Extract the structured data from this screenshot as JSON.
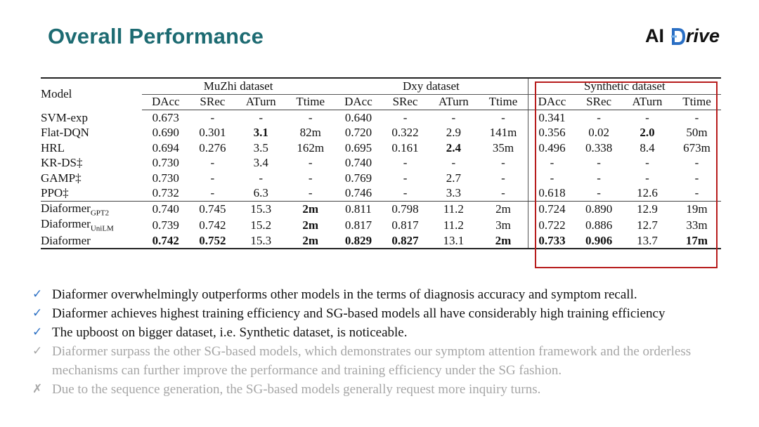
{
  "slide": {
    "title": "Overall Performance"
  },
  "logo": {
    "ai": "AI",
    "rive": "rive"
  },
  "table": {
    "model_header": "Model",
    "groups": [
      "MuZhi dataset",
      "Dxy dataset",
      "Synthetic dataset"
    ],
    "metrics": [
      "DAcc",
      "SRec",
      "ATurn",
      "Ttime"
    ],
    "rows": [
      {
        "model": "SVM-exp",
        "cells": [
          "0.673",
          "-",
          "-",
          "-",
          "0.640",
          "-",
          "-",
          "-",
          "0.341",
          "-",
          "-",
          "-"
        ]
      },
      {
        "model": "Flat-DQN",
        "cells": [
          "0.690",
          "0.301",
          "3.1",
          "82m",
          "0.720",
          "0.322",
          "2.9",
          "141m",
          "0.356",
          "0.02",
          "2.0",
          "50m"
        ]
      },
      {
        "model": "HRL",
        "cells": [
          "0.694",
          "0.276",
          "3.5",
          "162m",
          "0.695",
          "0.161",
          "2.4",
          "35m",
          "0.496",
          "0.338",
          "8.4",
          "673m"
        ]
      },
      {
        "model": "KR-DS‡",
        "cells": [
          "0.730",
          "-",
          "3.4",
          "-",
          "0.740",
          "-",
          "-",
          "-",
          "-",
          "-",
          "-",
          "-"
        ]
      },
      {
        "model": "GAMP‡",
        "cells": [
          "0.730",
          "-",
          "-",
          "-",
          "0.769",
          "-",
          "2.7",
          "-",
          "-",
          "-",
          "-",
          "-"
        ]
      },
      {
        "model": "PPO‡",
        "cells": [
          "0.732",
          "-",
          "6.3",
          "-",
          "0.746",
          "-",
          "3.3",
          "-",
          "0.618",
          "-",
          "12.6",
          "-"
        ]
      },
      {
        "model": "Diaformer",
        "sub": "GPT2",
        "cells": [
          "0.740",
          "0.745",
          "15.3",
          "2m",
          "0.811",
          "0.798",
          "11.2",
          "2m",
          "0.724",
          "0.890",
          "12.9",
          "19m"
        ]
      },
      {
        "model": "Diaformer",
        "sub": "UniLM",
        "cells": [
          "0.739",
          "0.742",
          "15.2",
          "2m",
          "0.817",
          "0.817",
          "11.2",
          "3m",
          "0.722",
          "0.886",
          "12.7",
          "33m"
        ]
      },
      {
        "model": "Diaformer",
        "cells": [
          "0.742",
          "0.752",
          "15.3",
          "2m",
          "0.829",
          "0.827",
          "13.1",
          "2m",
          "0.733",
          "0.906",
          "13.7",
          "17m"
        ]
      }
    ]
  },
  "bullets": [
    {
      "icon": "✓",
      "text": "Diaformer overwhelmingly outperforms other models in the terms of diagnosis accuracy and symptom recall."
    },
    {
      "icon": "✓",
      "text": "Diaformer achieves highest training efficiency and SG-based models all have considerably high training efficiency"
    },
    {
      "icon": "✓",
      "text": "The upboost on bigger dataset, i.e. Synthetic dataset, is noticeable."
    },
    {
      "icon": "✓",
      "text": "Diaformer surpass the other SG-based models, which demonstrates our symptom attention framework and the orderless mechanisms can further improve the performance and training efficiency under the SG fashion."
    },
    {
      "icon": "✗",
      "text": "Due to the sequence generation, the SG-based models generally request more inquiry turns."
    }
  ],
  "colors": {
    "title": "#1d6b72",
    "check": "#2a6fc4",
    "highlight_box": "#b71c1c",
    "faded_text": "#a6a6a6"
  }
}
